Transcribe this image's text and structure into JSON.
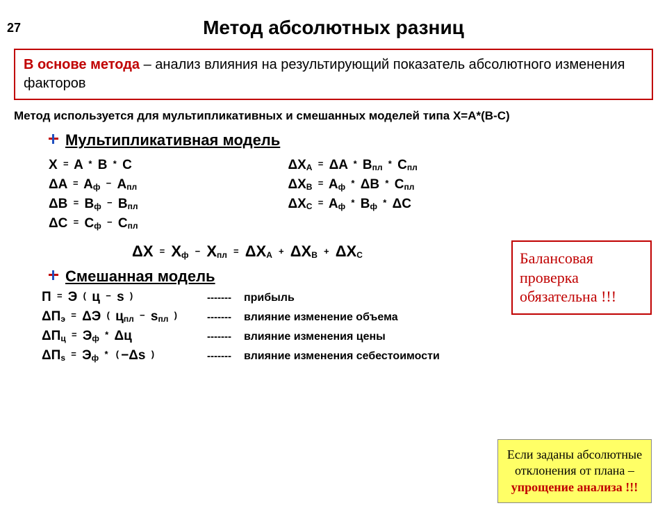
{
  "page_number": "27",
  "title": "Метод абсолютных разниц",
  "red_box": {
    "emph": "В основе метода",
    "rest": " – анализ влияния на результирующий показатель абсолютного изменения факторов",
    "border_color": "#c00000"
  },
  "note": "Метод используется для мультипликативных и смешанных моделей типа X=A*(B-C)",
  "section1": "Мультипликативная модель",
  "mult_left": [
    {
      "lhs": "X",
      "rhs": [
        "A",
        "*",
        "B",
        "*",
        "C"
      ],
      "delta_lhs": false
    },
    {
      "lhs": "ΔA",
      "rhs_sub": [
        [
          "A",
          "ф"
        ],
        "−",
        [
          "A",
          "пл"
        ]
      ]
    },
    {
      "lhs": "ΔB",
      "rhs_sub": [
        [
          "B",
          "ф"
        ],
        "−",
        [
          "B",
          "пл"
        ]
      ]
    },
    {
      "lhs": "ΔC",
      "rhs_sub": [
        [
          "C",
          "ф"
        ],
        "−",
        [
          "C",
          "пл"
        ]
      ]
    }
  ],
  "mult_right": [
    {
      "lhs": [
        "ΔX",
        "A"
      ],
      "rhs": [
        "ΔA",
        "*",
        [
          "B",
          "пл"
        ],
        "*",
        [
          "C",
          "пл"
        ]
      ]
    },
    {
      "lhs": [
        "ΔX",
        "B"
      ],
      "rhs": [
        [
          "A",
          "ф"
        ],
        "*",
        "ΔB",
        "*",
        [
          "C",
          "пл"
        ]
      ]
    },
    {
      "lhs": [
        "ΔX",
        "C"
      ],
      "rhs": [
        [
          "A",
          "ф"
        ],
        "*",
        [
          "B",
          "ф"
        ],
        "*",
        "ΔC"
      ]
    }
  ],
  "big_formula": {
    "part1": "ΔX",
    "eq1": "=",
    "part2a": [
      "X",
      "ф"
    ],
    "minus": "−",
    "part2b": [
      "X",
      "пл"
    ],
    "eq2": "=",
    "part3a": [
      "ΔX",
      "A"
    ],
    "plus1": "+",
    "part3b": [
      "ΔX",
      "B"
    ],
    "plus2": "+",
    "part3c": [
      "ΔX",
      "C"
    ]
  },
  "balance_box": "Балансовая проверка обязательна !!!",
  "section2": "Смешанная модель",
  "mixed": [
    {
      "f": "П = Э ( ц − s )",
      "label": "прибыль"
    },
    {
      "f": "ΔПэ = ΔЭ ( цпл − sпл )",
      "label": "влияние изменение объема",
      "lhs": [
        "ΔП",
        "э"
      ],
      "rhs": [
        "ΔЭ",
        "(",
        [
          "ц",
          "пл"
        ],
        "−",
        [
          "s",
          "пл"
        ],
        ")"
      ]
    },
    {
      "f": "ΔПц = Эф * Δц",
      "label": "влияние изменения цены",
      "lhs": [
        "ΔП",
        "ц"
      ],
      "rhs": [
        [
          "Э",
          "ф"
        ],
        "*",
        "Δц"
      ]
    },
    {
      "f": "ΔПs = Эф * (−Δs )",
      "label": "влияние изменения себестоимости",
      "lhs": [
        "ΔП",
        "s"
      ],
      "rhs": [
        [
          "Э",
          "ф"
        ],
        "*",
        "(−Δs",
        ")"
      ]
    }
  ],
  "dashes": "-------",
  "yellow_box": {
    "line1": "Если заданы абсолютные отклонения от плана –",
    "line2": "упрощение анализа !!!",
    "bg": "#ffff66",
    "border": "#888888",
    "red_color": "#c00000"
  },
  "colors": {
    "text": "#000000",
    "accent_red": "#c00000",
    "accent_blue": "#2050c0",
    "background": "#ffffff"
  },
  "fontsize": {
    "title": 28,
    "body": 20,
    "formula": 19,
    "big_formula": 22,
    "note": 17,
    "label": 16,
    "balance": 22,
    "yellow": 18
  }
}
